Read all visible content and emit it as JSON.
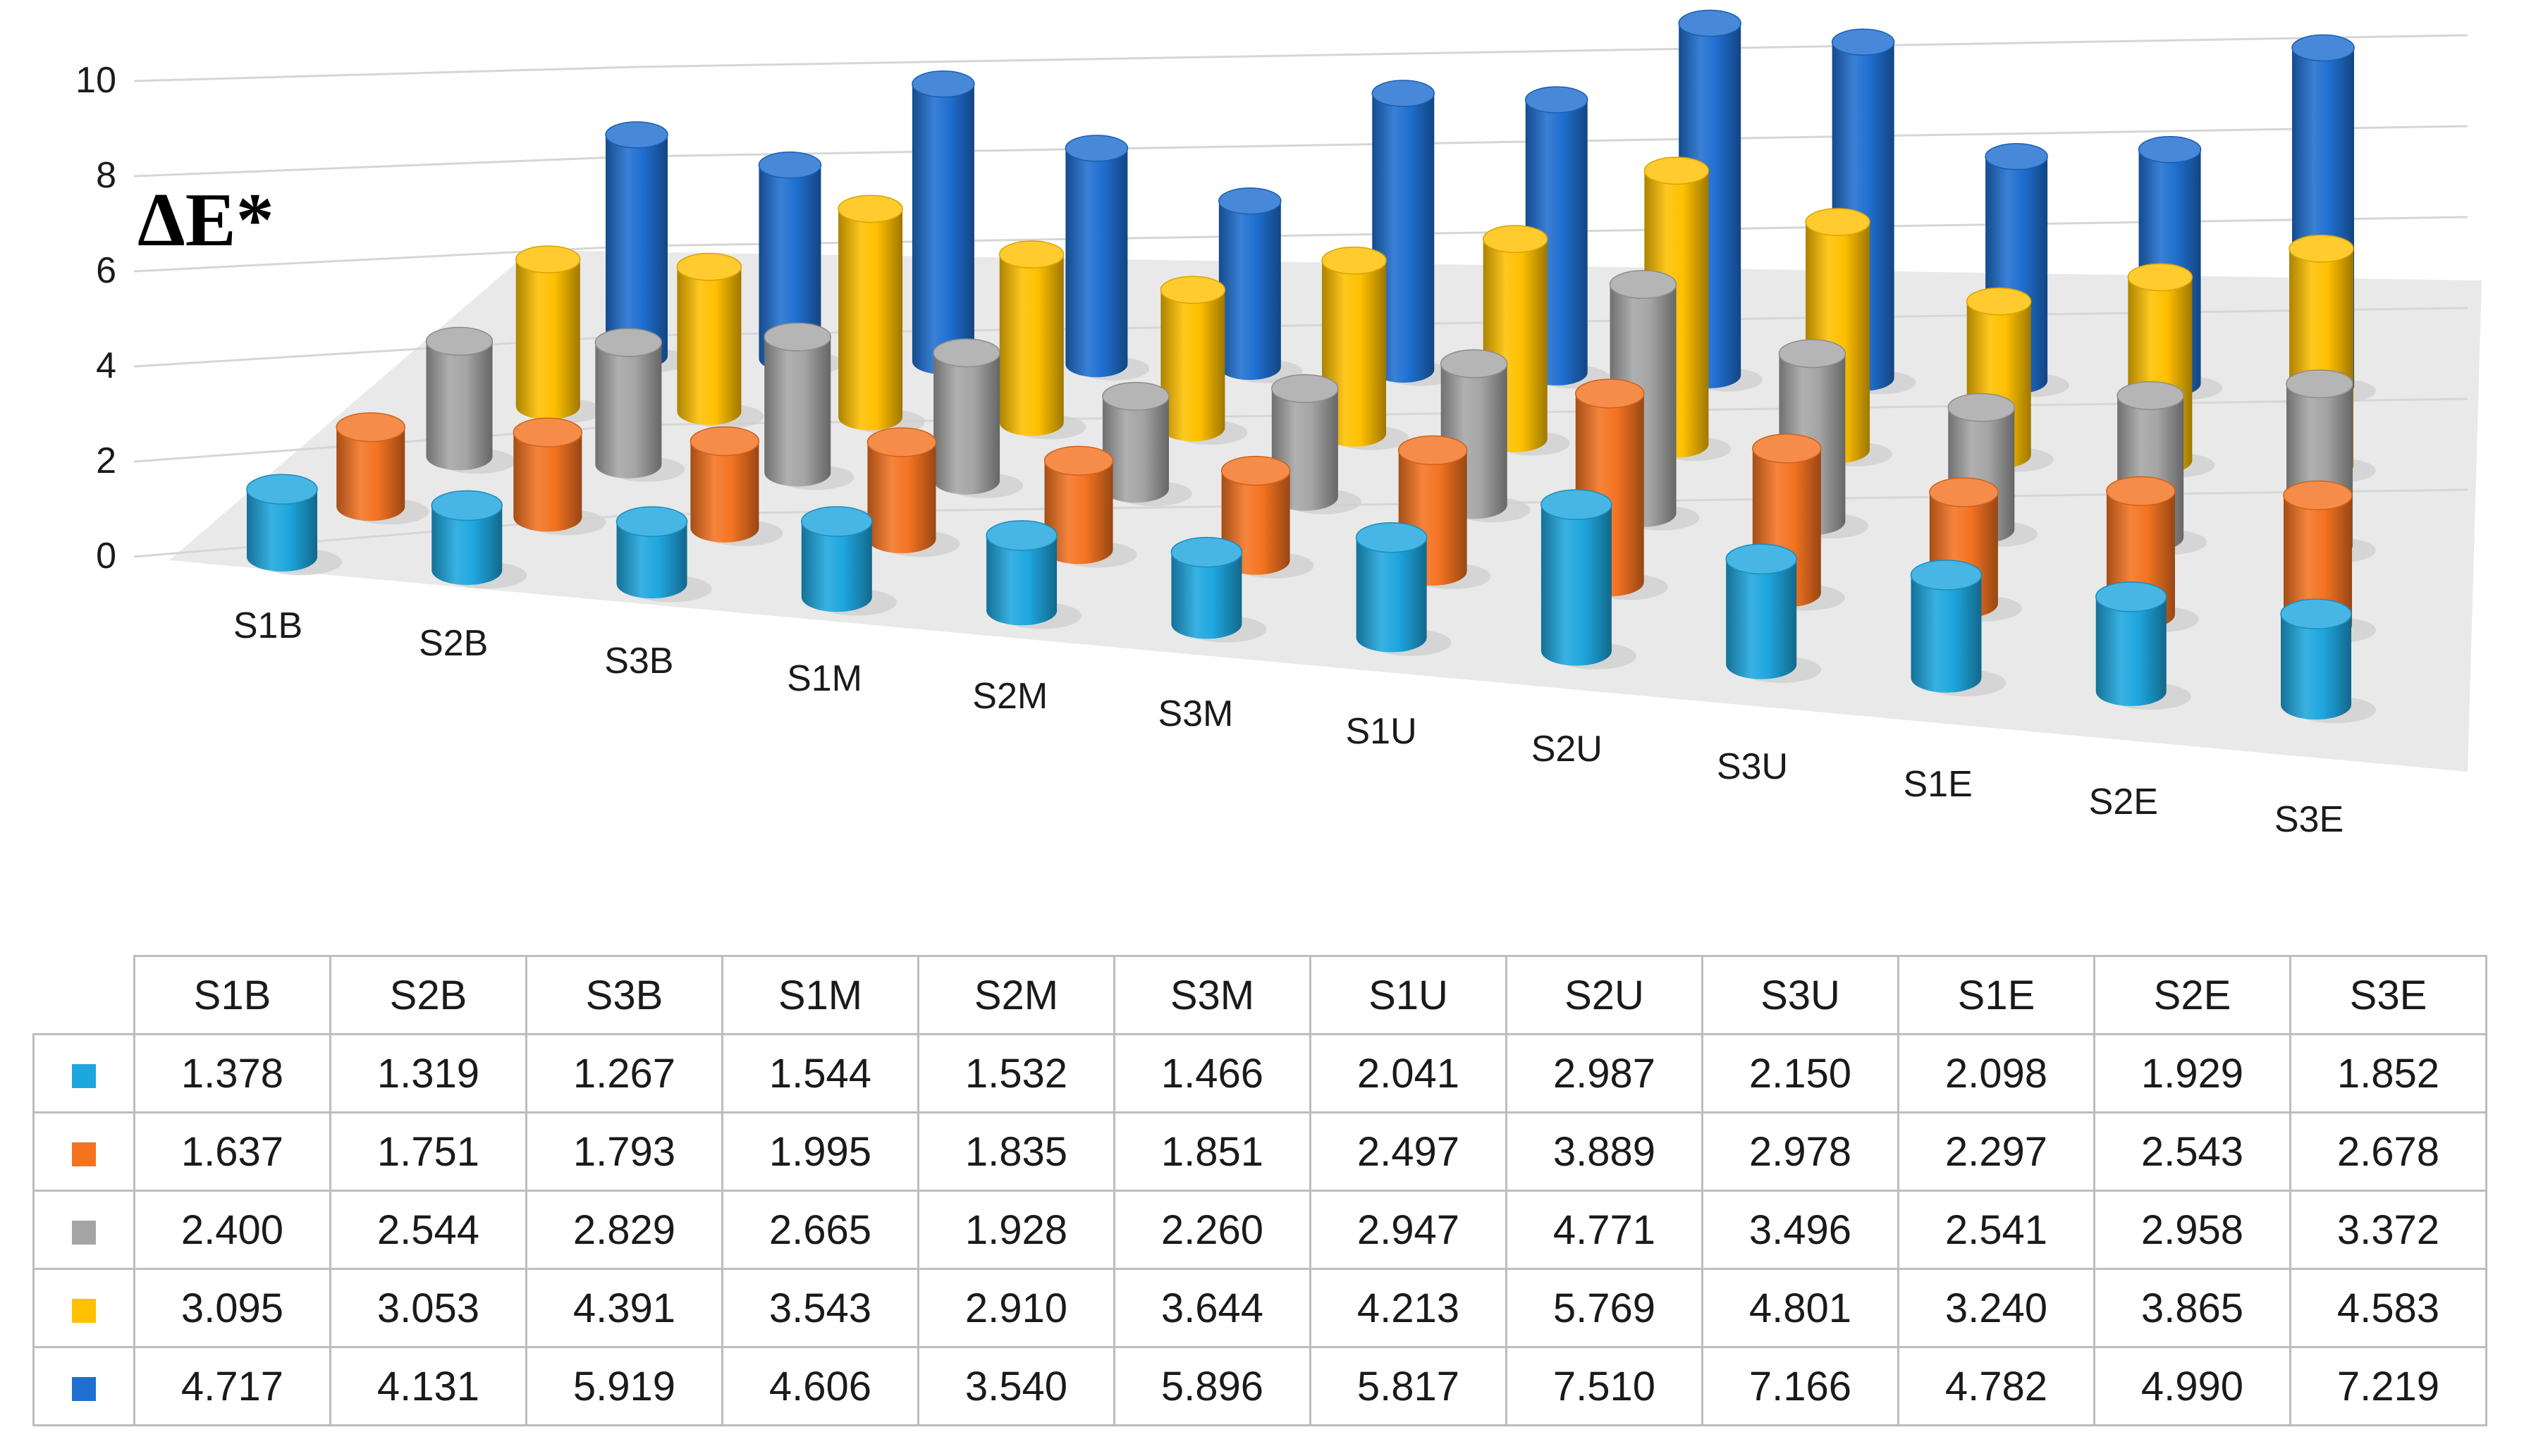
{
  "chart_data": {
    "type": "bar",
    "subtype": "3d-cylinder",
    "ylabel": "ΔE*",
    "xlabel": "",
    "title": "",
    "ylim": [
      0,
      10
    ],
    "yticks": [
      "0",
      "2",
      "4",
      "6",
      "8",
      "10"
    ],
    "categories": [
      "S1B",
      "S2B",
      "S3B",
      "S1M",
      "S2M",
      "S3M",
      "S1U",
      "S2U",
      "S3U",
      "S1E",
      "S2E",
      "S3E"
    ],
    "series": [
      {
        "name": "",
        "color": "#1ea6de",
        "values": [
          1.378,
          1.319,
          1.267,
          1.544,
          1.532,
          1.466,
          2.041,
          2.987,
          2.15,
          2.098,
          1.929,
          1.852
        ],
        "labels": [
          "1.378",
          "1.319",
          "1.267",
          "1.544",
          "1.532",
          "1.466",
          "2.041",
          "2.987",
          "2.150",
          "2.098",
          "1.929",
          "1.852"
        ]
      },
      {
        "name": "",
        "color": "#f47321",
        "values": [
          1.637,
          1.751,
          1.793,
          1.995,
          1.835,
          1.851,
          2.497,
          3.889,
          2.978,
          2.297,
          2.543,
          2.678
        ],
        "labels": [
          "1.637",
          "1.751",
          "1.793",
          "1.995",
          "1.835",
          "1.851",
          "2.497",
          "3.889",
          "2.978",
          "2.297",
          "2.543",
          "2.678"
        ]
      },
      {
        "name": "",
        "color": "#a5a5a5",
        "values": [
          2.4,
          2.544,
          2.829,
          2.665,
          1.928,
          2.26,
          2.947,
          4.771,
          3.496,
          2.541,
          2.958,
          3.372
        ],
        "labels": [
          "2.400",
          "2.544",
          "2.829",
          "2.665",
          "1.928",
          "2.260",
          "2.947",
          "4.771",
          "3.496",
          "2.541",
          "2.958",
          "3.372"
        ]
      },
      {
        "name": "",
        "color": "#ffc000",
        "values": [
          3.095,
          3.053,
          4.391,
          3.543,
          2.91,
          3.644,
          4.213,
          5.769,
          4.801,
          3.24,
          3.865,
          4.583
        ],
        "labels": [
          "3.095",
          "3.053",
          "4.391",
          "3.543",
          "2.910",
          "3.644",
          "4.213",
          "5.769",
          "4.801",
          "3.240",
          "3.865",
          "4.583"
        ]
      },
      {
        "name": "",
        "color": "#1f6fd0",
        "values": [
          4.717,
          4.131,
          5.919,
          4.606,
          3.54,
          5.896,
          5.817,
          7.51,
          7.166,
          4.782,
          4.99,
          7.219
        ],
        "labels": [
          "4.717",
          "4.131",
          "5.919",
          "4.606",
          "3.540",
          "5.896",
          "5.817",
          "7.510",
          "7.166",
          "4.782",
          "4.990",
          "7.219"
        ]
      }
    ]
  }
}
